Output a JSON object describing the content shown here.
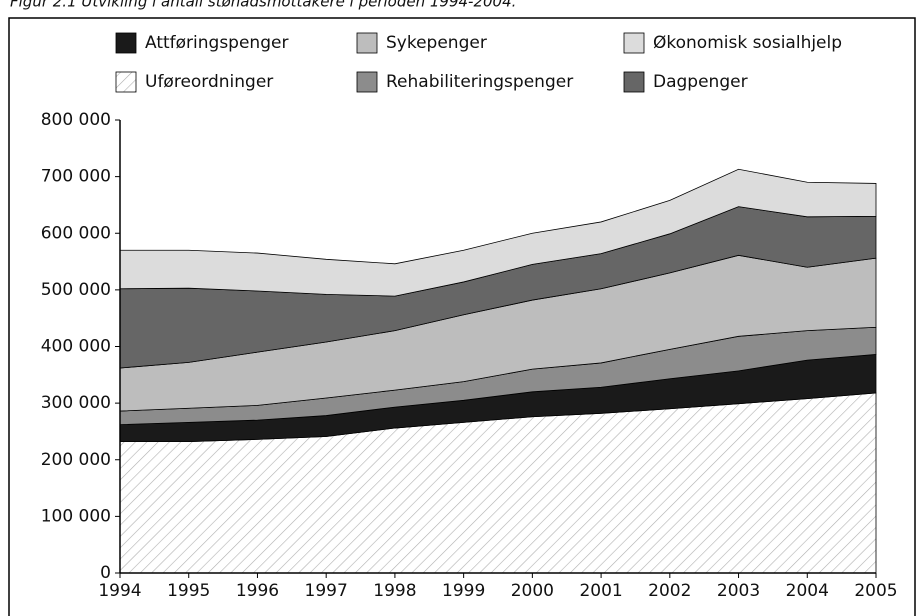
{
  "chart_data": {
    "type": "stacked_area",
    "title": "Figur 2.1 Utvikling i antall stønadsmottakere i perioden 1994-2004.",
    "categories": [
      "1994",
      "1995",
      "1996",
      "1997",
      "1998",
      "1999",
      "2000",
      "2001",
      "2002",
      "2003",
      "2004",
      "2005"
    ],
    "ylim": [
      0,
      800000
    ],
    "yticks": [
      0,
      {
        "value": 100000,
        "label": "100 000"
      },
      {
        "value": 200000,
        "label": "200 000"
      },
      {
        "value": 300000,
        "label": "300 000"
      },
      {
        "value": 400000,
        "label": "400 000"
      },
      {
        "value": 500000,
        "label": "500 000"
      },
      {
        "value": 600000,
        "label": "600 000"
      },
      {
        "value": 700000,
        "label": "700 000"
      },
      {
        "value": 800000,
        "label": "800 000"
      }
    ],
    "series": [
      {
        "name": "Uføreordninger",
        "color": "#b0b0b0",
        "pattern": "hatch",
        "values": [
          232000,
          232000,
          236000,
          241000,
          256000,
          266000,
          276000,
          282000,
          290000,
          299000,
          308000,
          318000
        ]
      },
      {
        "name": "Attføringspenger",
        "color": "#1a1a1a",
        "values": [
          30000,
          34000,
          34000,
          37000,
          37000,
          39000,
          44000,
          46000,
          53000,
          58000,
          68000,
          68000
        ]
      },
      {
        "name": "Rehabiliteringspenger",
        "color": "#8c8c8c",
        "values": [
          24000,
          25000,
          26000,
          31000,
          30000,
          33000,
          40000,
          43000,
          52000,
          61000,
          52000,
          48000
        ]
      },
      {
        "name": "Sykepenger",
        "color": "#bdbdbd",
        "values": [
          76000,
          81000,
          94000,
          99000,
          105000,
          118000,
          122000,
          131000,
          135000,
          143000,
          112000,
          122000
        ]
      },
      {
        "name": "Dagpenger",
        "color": "#666666",
        "values": [
          140000,
          131000,
          108000,
          84000,
          61000,
          58000,
          63000,
          62000,
          69000,
          86000,
          89000,
          74000
        ]
      },
      {
        "name": "Økonomisk sosialhjelp",
        "color": "#dcdcdc",
        "values": [
          68000,
          67000,
          67000,
          62000,
          57000,
          56000,
          55000,
          56000,
          59000,
          66000,
          61000,
          58000
        ]
      }
    ]
  }
}
